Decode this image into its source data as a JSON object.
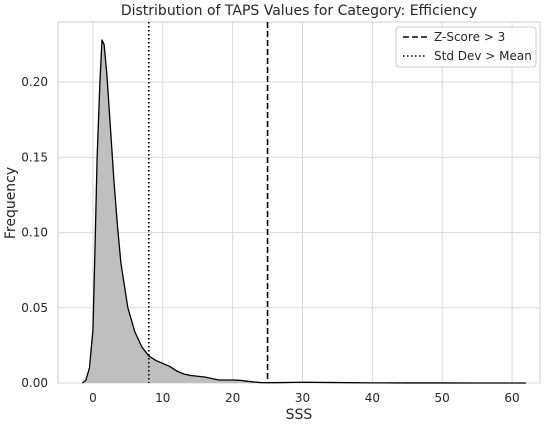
{
  "chart_data": {
    "type": "area",
    "title": "Distribution of TAPS Values for Category: Efficiency",
    "xlabel": "SSS",
    "ylabel": "Frequency",
    "xlim": [
      -5,
      64
    ],
    "ylim": [
      0,
      0.24
    ],
    "x_ticks": [
      0,
      10,
      20,
      30,
      40,
      50,
      60
    ],
    "x_tick_labels": [
      "0",
      "10",
      "20",
      "30",
      "40",
      "50",
      "60"
    ],
    "y_ticks": [
      0,
      0.05,
      0.1,
      0.15,
      0.2
    ],
    "y_tick_labels": [
      "0.00",
      "0.05",
      "0.10",
      "0.15",
      "0.20"
    ],
    "grid": true,
    "legend_position": "top-right",
    "series": [
      {
        "kind": "kde",
        "fill_color": "#bfbfbf",
        "line_color": "#000000",
        "x": [
          -1.5,
          -1,
          -0.5,
          0,
          0.3,
          0.6,
          1,
          1.3,
          1.6,
          2,
          2.5,
          3,
          3.5,
          4,
          5,
          6,
          7,
          8,
          9,
          10,
          11,
          12,
          13,
          14,
          15,
          16,
          17,
          18,
          19,
          20,
          21,
          22,
          23,
          24,
          25,
          27,
          30,
          35,
          40,
          45,
          50,
          55,
          60,
          62
        ],
        "y": [
          0,
          0.002,
          0.01,
          0.035,
          0.09,
          0.15,
          0.2,
          0.228,
          0.225,
          0.205,
          0.17,
          0.135,
          0.105,
          0.08,
          0.05,
          0.034,
          0.024,
          0.018,
          0.015,
          0.013,
          0.011,
          0.008,
          0.006,
          0.005,
          0.0045,
          0.004,
          0.003,
          0.002,
          0.002,
          0.002,
          0.0018,
          0.0012,
          0.0007,
          0.0003,
          0.0002,
          0.0003,
          0.0005,
          0.0003,
          0.0001,
          5e-05,
          3e-05,
          2e-05,
          1e-05,
          0
        ]
      }
    ],
    "reference_lines": [
      {
        "name": "Z-Score > 3",
        "x": 25,
        "style": "dashed",
        "color": "#000000"
      },
      {
        "name": "Std Dev > Mean",
        "x": 8,
        "style": "dotted",
        "color": "#000000"
      }
    ]
  }
}
